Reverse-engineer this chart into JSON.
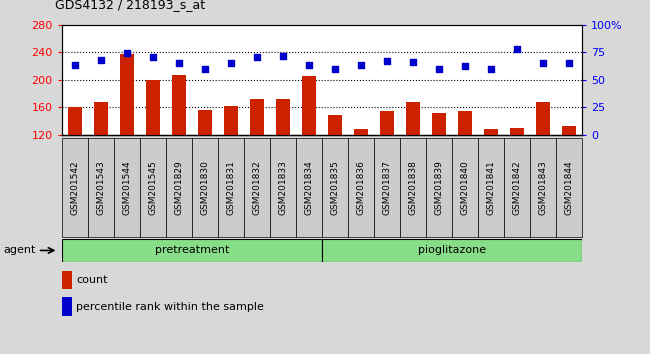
{
  "title": "GDS4132 / 218193_s_at",
  "categories": [
    "GSM201542",
    "GSM201543",
    "GSM201544",
    "GSM201545",
    "GSM201829",
    "GSM201830",
    "GSM201831",
    "GSM201832",
    "GSM201833",
    "GSM201834",
    "GSM201835",
    "GSM201836",
    "GSM201837",
    "GSM201838",
    "GSM201839",
    "GSM201840",
    "GSM201841",
    "GSM201842",
    "GSM201843",
    "GSM201844"
  ],
  "bar_values": [
    160,
    168,
    238,
    200,
    207,
    156,
    162,
    172,
    172,
    205,
    148,
    128,
    155,
    168,
    152,
    155,
    128,
    130,
    168,
    132
  ],
  "dot_values": [
    63,
    68,
    74,
    71,
    65,
    60,
    65,
    71,
    72,
    63,
    60,
    63,
    67,
    66,
    60,
    62,
    60,
    78,
    65,
    65
  ],
  "group1_label": "pretreatment",
  "group2_label": "pioglitazone",
  "bar_color": "#cc2200",
  "dot_color": "#0000cc",
  "ylim_left": [
    120,
    280
  ],
  "ylim_right": [
    0,
    100
  ],
  "yticks_left": [
    120,
    160,
    200,
    240,
    280
  ],
  "yticks_right": [
    0,
    25,
    50,
    75,
    100
  ],
  "background_color": "#d8d8d8",
  "plot_bg_color": "#ffffff",
  "tick_bg_color": "#cccccc",
  "group_bg_color": "#88dd88",
  "legend_count_label": "count",
  "legend_pct_label": "percentile rank within the sample"
}
